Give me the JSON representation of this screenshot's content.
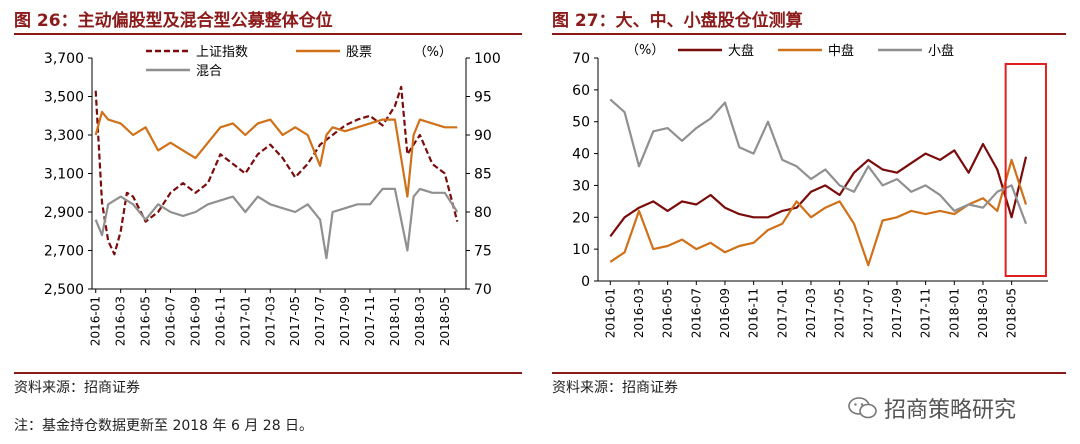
{
  "left": {
    "title": "图 26：主动偏股型及混合型公募整体仓位",
    "source": "资料来源：招商证券"
  },
  "right": {
    "title": "图 27：大、中、小盘股仓位测算",
    "source": "资料来源：招商证券"
  },
  "note": "注：基金持仓数据更新至 2018 年 6 月 28 日。",
  "brand": "招商策略研究",
  "chart_data": [
    {
      "type": "line",
      "title": "图 26：主动偏股型及混合型公募整体仓位",
      "x_ticks": [
        "2016-01",
        "2016-03",
        "2016-05",
        "2016-07",
        "2016-09",
        "2016-11",
        "2017-01",
        "2017-03",
        "2017-05",
        "2017-07",
        "2017-09",
        "2017-11",
        "2018-01",
        "2018-03",
        "2018-05"
      ],
      "x_range": [
        "2016-01",
        "2018-06"
      ],
      "y_left": {
        "min": 2500,
        "max": 3700,
        "ticks": [
          "2,500",
          "2,700",
          "2,900",
          "3,100",
          "3,300",
          "3,500",
          "3,700"
        ]
      },
      "y_right": {
        "min": 70,
        "max": 100,
        "ticks": [
          "70",
          "75",
          "80",
          "85",
          "90",
          "95",
          "100"
        ],
        "unit": "（%）"
      },
      "grid": false,
      "legend_position": "top",
      "series": [
        {
          "name": "上证指数",
          "axis": "left",
          "color": "#7b0c0c",
          "dash": true,
          "x": [
            "2016-01",
            "2016-01",
            "2016-02",
            "2016-02",
            "2016-03",
            "2016-03",
            "2016-04",
            "2016-05",
            "2016-06",
            "2016-07",
            "2016-08",
            "2016-09",
            "2016-10",
            "2016-11",
            "2016-12",
            "2017-01",
            "2017-02",
            "2017-03",
            "2017-04",
            "2017-05",
            "2017-06",
            "2017-07",
            "2017-08",
            "2017-09",
            "2017-10",
            "2017-11",
            "2017-12",
            "2018-01",
            "2018-01",
            "2018-02",
            "2018-02",
            "2018-03",
            "2018-04",
            "2018-05",
            "2018-06"
          ],
          "values": [
            3530,
            2950,
            2750,
            2680,
            2800,
            3000,
            2980,
            2850,
            2900,
            3000,
            3050,
            3000,
            3050,
            3200,
            3150,
            3100,
            3200,
            3250,
            3180,
            3080,
            3150,
            3250,
            3300,
            3350,
            3380,
            3400,
            3350,
            3450,
            3550,
            3200,
            3250,
            3300,
            3150,
            3100,
            2850
          ]
        },
        {
          "name": "股票",
          "axis": "right",
          "color": "#d0711a",
          "dash": false,
          "x": [
            "2016-01",
            "2016-01",
            "2016-02",
            "2016-03",
            "2016-04",
            "2016-05",
            "2016-06",
            "2016-07",
            "2016-08",
            "2016-09",
            "2016-10",
            "2016-11",
            "2016-12",
            "2017-01",
            "2017-02",
            "2017-03",
            "2017-04",
            "2017-05",
            "2017-06",
            "2017-07",
            "2017-07",
            "2017-08",
            "2017-09",
            "2017-10",
            "2017-11",
            "2017-12",
            "2018-01",
            "2018-02",
            "2018-02",
            "2018-03",
            "2018-04",
            "2018-05",
            "2018-06"
          ],
          "values": [
            90,
            93,
            92,
            91.5,
            90,
            91,
            88,
            89,
            88,
            87,
            89,
            91,
            91.5,
            90,
            91.5,
            92,
            90,
            91,
            90,
            86,
            90,
            91,
            90.5,
            91,
            91.5,
            92,
            92,
            82,
            90,
            92,
            91.5,
            91,
            91
          ]
        },
        {
          "name": "混合",
          "axis": "right",
          "color": "#909090",
          "dash": false,
          "x": [
            "2016-01",
            "2016-01",
            "2016-02",
            "2016-03",
            "2016-04",
            "2016-05",
            "2016-06",
            "2016-07",
            "2016-08",
            "2016-09",
            "2016-10",
            "2016-11",
            "2016-12",
            "2017-01",
            "2017-02",
            "2017-03",
            "2017-04",
            "2017-05",
            "2017-06",
            "2017-07",
            "2017-07",
            "2017-08",
            "2017-09",
            "2017-10",
            "2017-11",
            "2017-12",
            "2018-01",
            "2018-02",
            "2018-02",
            "2018-03",
            "2018-04",
            "2018-05",
            "2018-06"
          ],
          "values": [
            79,
            77,
            81,
            82,
            81,
            79,
            81,
            80,
            79.5,
            80,
            81,
            81.5,
            82,
            80,
            82,
            81,
            80.5,
            80,
            81,
            79,
            74,
            80,
            80.5,
            81,
            81,
            83,
            83,
            75,
            82,
            83,
            82.5,
            82.5,
            80
          ]
        }
      ]
    },
    {
      "type": "line",
      "title": "图 27：大、中、小盘股仓位测算",
      "x_ticks": [
        "2016-01",
        "2016-03",
        "2016-05",
        "2016-07",
        "2016-09",
        "2016-11",
        "2017-01",
        "2017-03",
        "2017-05",
        "2017-07",
        "2017-09",
        "2017-11",
        "2018-01",
        "2018-03",
        "2018-05"
      ],
      "x_range": [
        "2016-01",
        "2018-06"
      ],
      "y": {
        "min": 0,
        "max": 70,
        "ticks": [
          "0",
          "10",
          "20",
          "30",
          "40",
          "50",
          "60",
          "70"
        ],
        "unit": "（%）"
      },
      "grid": false,
      "legend_position": "top",
      "highlight": {
        "from": "2018-05",
        "to": "2018-06",
        "color": "#e02020"
      },
      "series": [
        {
          "name": "大盘",
          "color": "#7b0c0c",
          "x": [
            "2016-01",
            "2016-02",
            "2016-03",
            "2016-04",
            "2016-05",
            "2016-06",
            "2016-07",
            "2016-08",
            "2016-09",
            "2016-10",
            "2016-11",
            "2016-12",
            "2017-01",
            "2017-02",
            "2017-03",
            "2017-04",
            "2017-05",
            "2017-06",
            "2017-07",
            "2017-08",
            "2017-09",
            "2017-10",
            "2017-11",
            "2017-12",
            "2018-01",
            "2018-02",
            "2018-03",
            "2018-04",
            "2018-05",
            "2018-06"
          ],
          "values": [
            14,
            20,
            23,
            25,
            22,
            25,
            24,
            27,
            23,
            21,
            20,
            20,
            22,
            23,
            28,
            30,
            27,
            34,
            38,
            35,
            34,
            37,
            40,
            38,
            41,
            34,
            43,
            35,
            20,
            39
          ]
        },
        {
          "name": "中盘",
          "color": "#d0711a",
          "x": [
            "2016-01",
            "2016-02",
            "2016-03",
            "2016-04",
            "2016-05",
            "2016-06",
            "2016-07",
            "2016-08",
            "2016-09",
            "2016-10",
            "2016-11",
            "2016-12",
            "2017-01",
            "2017-02",
            "2017-03",
            "2017-04",
            "2017-05",
            "2017-06",
            "2017-07",
            "2017-08",
            "2017-09",
            "2017-10",
            "2017-11",
            "2017-12",
            "2018-01",
            "2018-02",
            "2018-03",
            "2018-04",
            "2018-05",
            "2018-06"
          ],
          "values": [
            6,
            9,
            22,
            10,
            11,
            13,
            10,
            12,
            9,
            11,
            12,
            16,
            18,
            25,
            20,
            23,
            25,
            18,
            5,
            19,
            20,
            22,
            21,
            22,
            21,
            24,
            26,
            22,
            38,
            24
          ]
        },
        {
          "name": "小盘",
          "color": "#909090",
          "x": [
            "2016-01",
            "2016-02",
            "2016-03",
            "2016-04",
            "2016-05",
            "2016-06",
            "2016-07",
            "2016-08",
            "2016-09",
            "2016-10",
            "2016-11",
            "2016-12",
            "2017-01",
            "2017-02",
            "2017-03",
            "2017-04",
            "2017-05",
            "2017-06",
            "2017-07",
            "2017-08",
            "2017-09",
            "2017-10",
            "2017-11",
            "2017-12",
            "2018-01",
            "2018-02",
            "2018-03",
            "2018-04",
            "2018-05",
            "2018-06"
          ],
          "values": [
            57,
            53,
            36,
            47,
            48,
            44,
            48,
            51,
            56,
            42,
            40,
            50,
            38,
            36,
            32,
            35,
            30,
            28,
            36,
            30,
            32,
            28,
            30,
            27,
            22,
            24,
            23,
            28,
            30,
            18
          ]
        }
      ]
    }
  ]
}
